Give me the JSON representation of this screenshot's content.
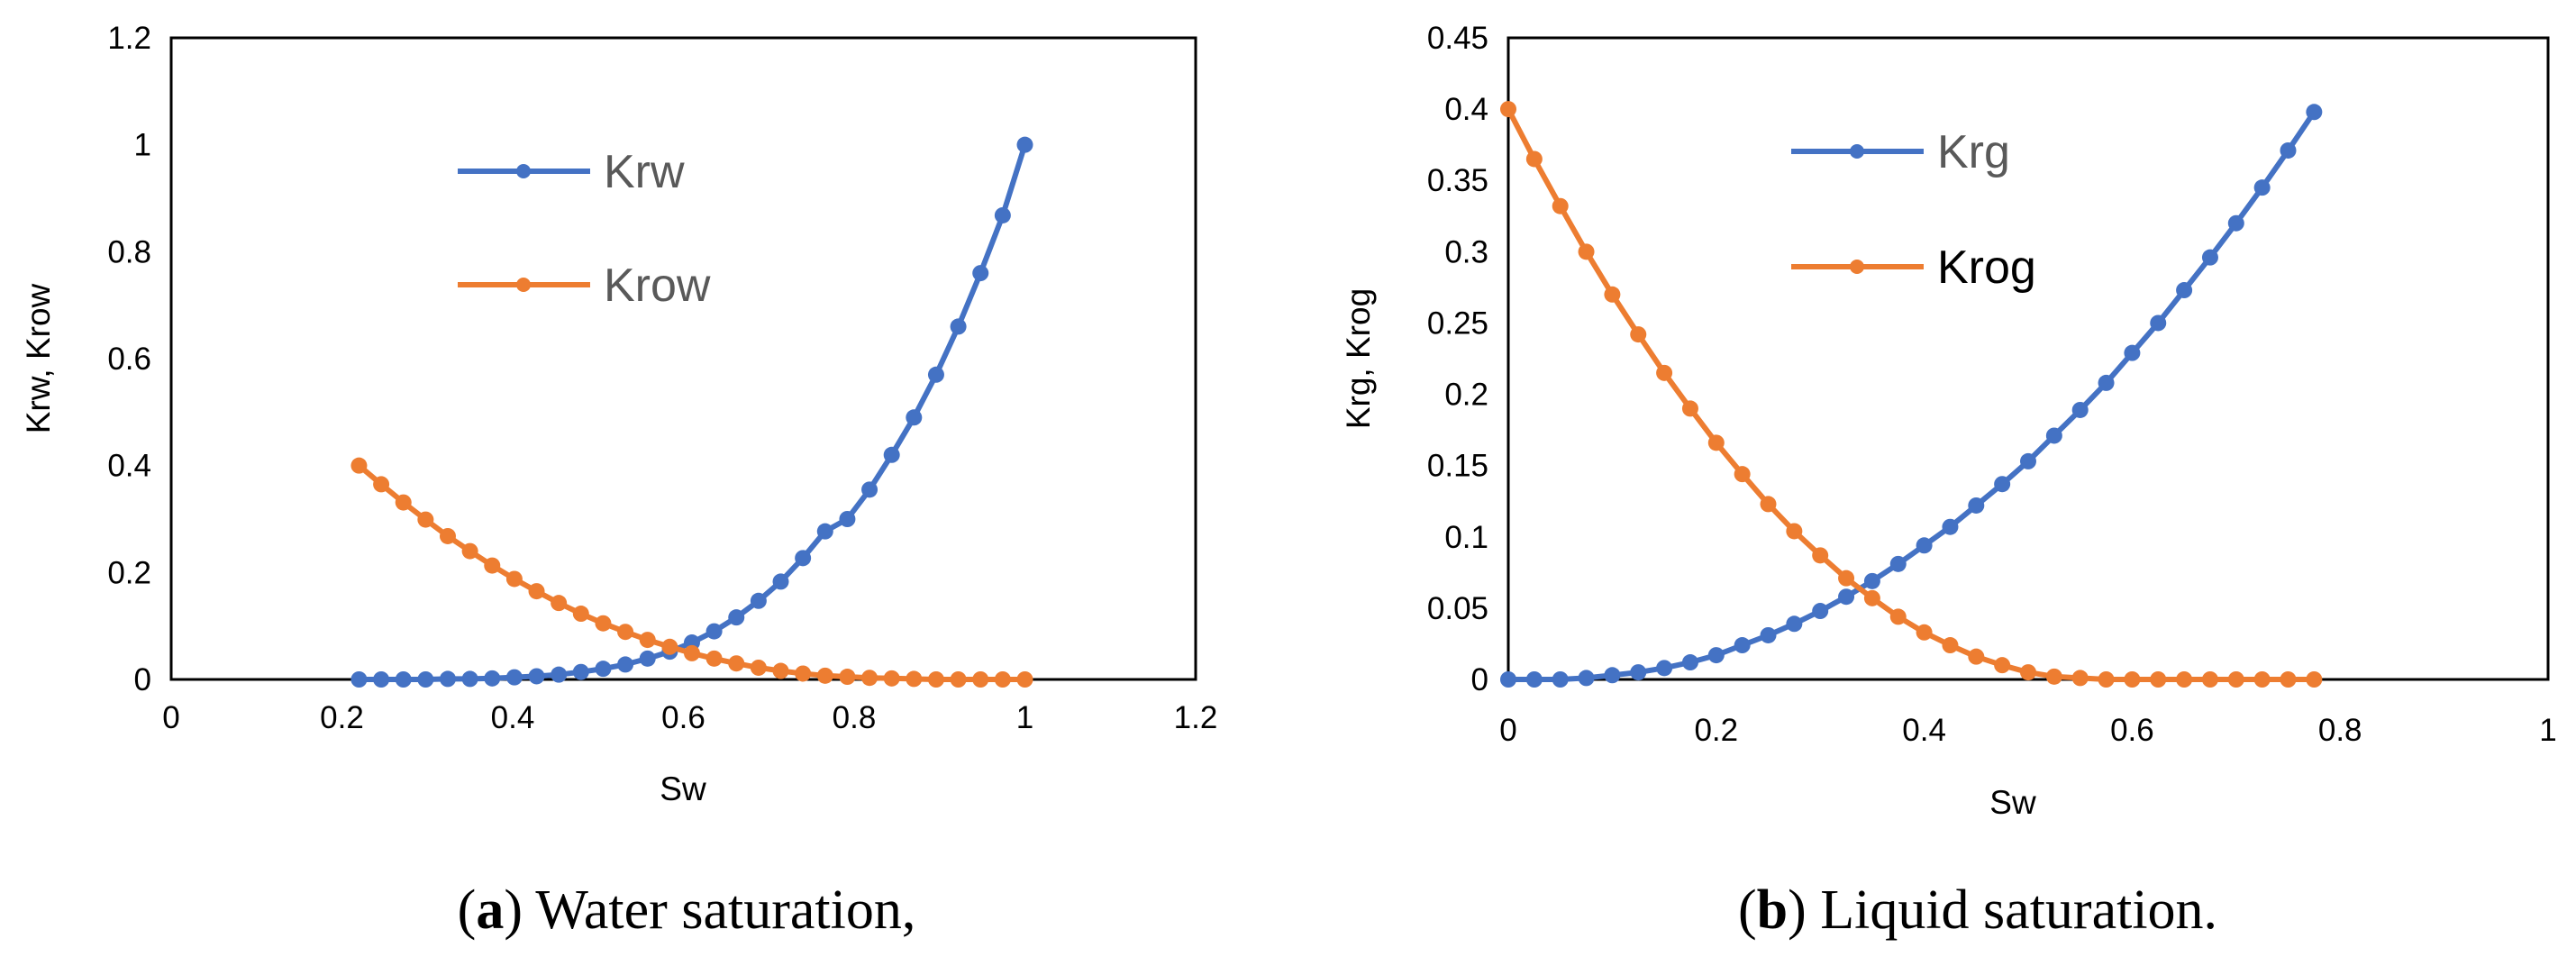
{
  "chart_data": [
    {
      "type": "line",
      "panel": "a",
      "title": "",
      "xlabel": "Sw",
      "ylabel": "Krw, Krow",
      "xlim": [
        0,
        1.2
      ],
      "ylim": [
        0,
        1.2
      ],
      "x_ticks": [
        "0",
        "0.2",
        "0.4",
        "0.6",
        "0.8",
        "1",
        "1.2"
      ],
      "y_ticks": [
        "0",
        "0.2",
        "0.4",
        "0.6",
        "0.8",
        "1",
        "1.2"
      ],
      "grid": false,
      "legend_position": "top-center",
      "caption_letter": "a",
      "caption_text": " Water saturation,",
      "x": [
        0.22,
        0.246,
        0.272,
        0.298,
        0.324,
        0.35,
        0.376,
        0.402,
        0.428,
        0.454,
        0.48,
        0.506,
        0.532,
        0.558,
        0.584,
        0.61,
        0.636,
        0.662,
        0.688,
        0.714,
        0.74,
        0.766,
        0.792,
        0.818,
        0.844,
        0.87,
        0.896,
        0.922,
        0.948,
        0.974,
        1.0
      ],
      "series": [
        {
          "name": "Krw",
          "color": "#4472C4",
          "values": [
            0.0,
            0.0,
            0.0,
            0.0,
            0.001,
            0.001,
            0.002,
            0.004,
            0.006,
            0.009,
            0.014,
            0.02,
            0.028,
            0.039,
            0.052,
            0.069,
            0.09,
            0.116,
            0.147,
            0.183,
            0.227,
            0.277,
            0.3,
            0.355,
            0.42,
            0.49,
            0.57,
            0.66,
            0.76,
            0.868,
            1.0
          ]
        },
        {
          "name": "Krow",
          "color": "#ED7D31",
          "values": [
            0.4,
            0.365,
            0.331,
            0.299,
            0.268,
            0.24,
            0.213,
            0.188,
            0.165,
            0.143,
            0.123,
            0.105,
            0.089,
            0.074,
            0.061,
            0.049,
            0.039,
            0.03,
            0.022,
            0.016,
            0.011,
            0.007,
            0.005,
            0.003,
            0.002,
            0.001,
            0.0,
            0.0,
            0.0,
            0.0,
            0.0
          ]
        }
      ]
    },
    {
      "type": "line",
      "panel": "b",
      "title": "",
      "xlabel": "Sw",
      "ylabel": "Krg, Krog",
      "xlim": [
        0,
        1
      ],
      "ylim": [
        0,
        0.45
      ],
      "x_ticks": [
        "0",
        "0.2",
        "0.4",
        "0.6",
        "0.8",
        "1"
      ],
      "y_ticks": [
        "0",
        "0.05",
        "0.1",
        "0.15",
        "0.2",
        "0.25",
        "0.3",
        "0.35",
        "0.4",
        "0.45"
      ],
      "grid": false,
      "legend_position": "top-center",
      "caption_letter": "b",
      "caption_text": " Liquid saturation.",
      "x": [
        0.0,
        0.025,
        0.05,
        0.075,
        0.1,
        0.125,
        0.15,
        0.175,
        0.2,
        0.225,
        0.25,
        0.275,
        0.3,
        0.325,
        0.35,
        0.375,
        0.4,
        0.425,
        0.45,
        0.475,
        0.5,
        0.525,
        0.55,
        0.575,
        0.6,
        0.625,
        0.65,
        0.675,
        0.7,
        0.725,
        0.75,
        0.775
      ],
      "series": [
        {
          "name": "Krg",
          "color": "#4472C4",
          "values": [
            0.0,
            0.0,
            0.0,
            0.001,
            0.003,
            0.005,
            0.008,
            0.012,
            0.017,
            0.024,
            0.031,
            0.039,
            0.048,
            0.058,
            0.069,
            0.081,
            0.094,
            0.107,
            0.122,
            0.137,
            0.153,
            0.171,
            0.189,
            0.208,
            0.229,
            0.25,
            0.273,
            0.296,
            0.32,
            0.345,
            0.371,
            0.398
          ]
        },
        {
          "name": "Krog",
          "color": "#ED7D31",
          "values": [
            0.4,
            0.365,
            0.332,
            0.3,
            0.27,
            0.242,
            0.215,
            0.19,
            0.166,
            0.144,
            0.123,
            0.104,
            0.087,
            0.071,
            0.057,
            0.044,
            0.033,
            0.024,
            0.016,
            0.01,
            0.005,
            0.002,
            0.001,
            0.0,
            0.0,
            0.0,
            0.0,
            0.0,
            0.0,
            0.0,
            0.0,
            0.0
          ]
        }
      ]
    }
  ]
}
